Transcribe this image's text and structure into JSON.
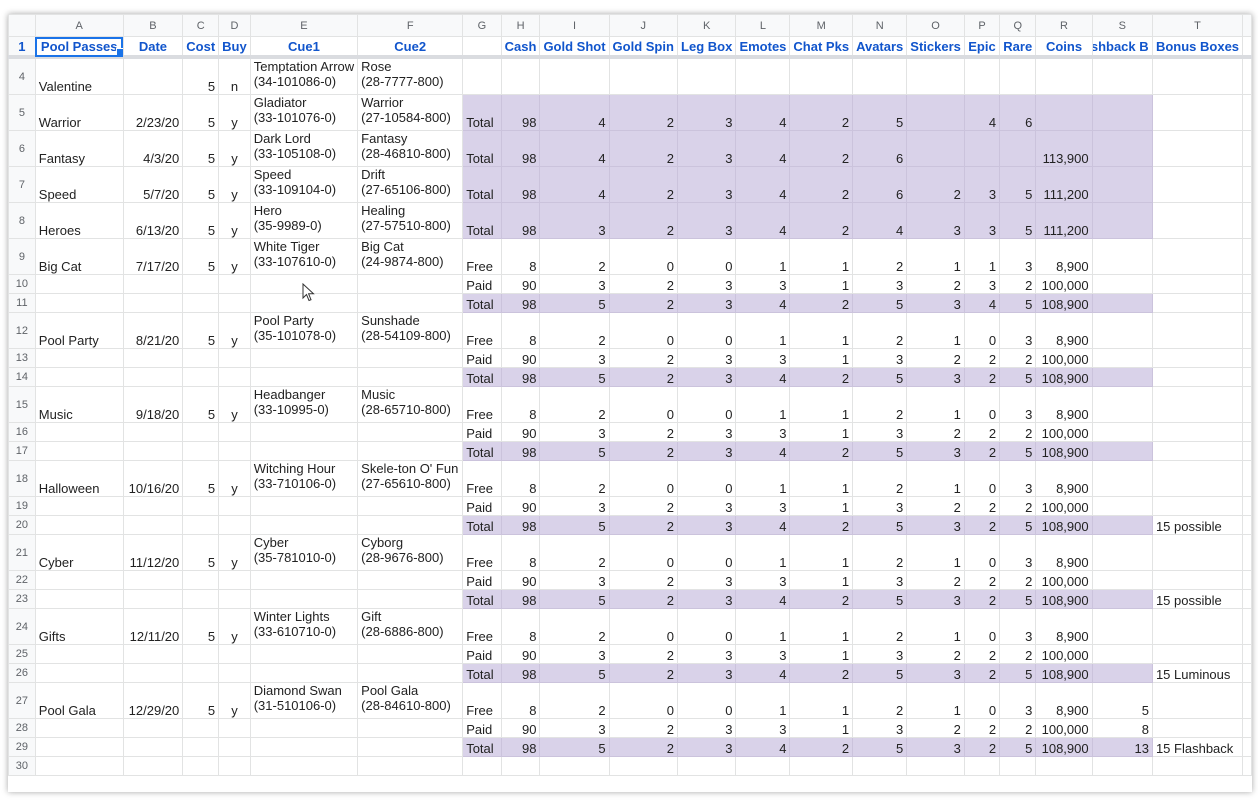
{
  "columns": [
    "A",
    "B",
    "C",
    "D",
    "E",
    "F",
    "G",
    "H",
    "I",
    "J",
    "K",
    "L",
    "M",
    "N",
    "O",
    "P",
    "Q",
    "R",
    "S",
    "T"
  ],
  "header_row": {
    "row_number": "1",
    "cells": [
      "Pool Passes",
      "Date",
      "Cost",
      "Buy",
      "Cue1",
      "Cue2",
      "",
      "Cash",
      "Gold Shot",
      "Gold Spin",
      "Leg Box",
      "Emotes",
      "Chat Pks",
      "Avatars",
      "Stickers",
      "Epic",
      "Rare",
      "Coins",
      "ashback B",
      "Bonus Boxes"
    ]
  },
  "selected_cell": "A1",
  "rows": [
    {
      "n": "4",
      "h": "tall",
      "tint": false,
      "cells": [
        "Valentine",
        "",
        "5",
        "n",
        [
          "Temptation Arrow",
          "(34-101086-0)"
        ],
        [
          "Rose",
          "(28-7777-800)"
        ],
        "",
        "",
        "",
        "",
        "",
        "",
        "",
        "",
        "",
        "",
        "",
        "",
        "",
        ""
      ]
    },
    {
      "n": "5",
      "h": "tall",
      "tint": true,
      "cells": [
        "Warrior",
        "2/23/20",
        "5",
        "y",
        [
          "Gladiator",
          "(33-101076-0)"
        ],
        [
          "Warrior",
          "(27-10584-800)"
        ],
        "Total",
        "98",
        "4",
        "2",
        "3",
        "4",
        "2",
        "5",
        "",
        "4",
        "6",
        "",
        "",
        ""
      ]
    },
    {
      "n": "6",
      "h": "tall",
      "tint": true,
      "cells": [
        "Fantasy",
        "4/3/20",
        "5",
        "y",
        [
          "Dark Lord",
          "(33-105108-0)"
        ],
        [
          "Fantasy",
          "(28-46810-800)"
        ],
        "Total",
        "98",
        "4",
        "2",
        "3",
        "4",
        "2",
        "6",
        "",
        "",
        "",
        "113,900",
        "",
        ""
      ]
    },
    {
      "n": "7",
      "h": "tall",
      "tint": true,
      "cells": [
        "Speed",
        "5/7/20",
        "5",
        "y",
        [
          "Speed",
          "(33-109104-0)"
        ],
        [
          "Drift",
          "(27-65106-800)"
        ],
        "Total",
        "98",
        "4",
        "2",
        "3",
        "4",
        "2",
        "6",
        "2",
        "3",
        "5",
        "111,200",
        "",
        ""
      ]
    },
    {
      "n": "8",
      "h": "tall",
      "tint": true,
      "cells": [
        "Heroes",
        "6/13/20",
        "5",
        "y",
        [
          "Hero",
          "(35-9989-0)"
        ],
        [
          "Healing",
          "(27-57510-800)"
        ],
        "Total",
        "98",
        "3",
        "2",
        "3",
        "4",
        "2",
        "4",
        "3",
        "3",
        "5",
        "111,200",
        "",
        ""
      ]
    },
    {
      "n": "9",
      "h": "tall",
      "tint": false,
      "cells": [
        "Big Cat",
        "7/17/20",
        "5",
        "y",
        [
          "White Tiger",
          "(33-107610-0)"
        ],
        [
          "Big Cat",
          "(24-9874-800)"
        ],
        "Free",
        "8",
        "2",
        "0",
        "0",
        "1",
        "1",
        "2",
        "1",
        "1",
        "3",
        "8,900",
        "",
        ""
      ]
    },
    {
      "n": "10",
      "h": "short",
      "tint": false,
      "cells": [
        "",
        "",
        "",
        "",
        "",
        "",
        "Paid",
        "90",
        "3",
        "2",
        "3",
        "3",
        "1",
        "3",
        "2",
        "3",
        "2",
        "100,000",
        "",
        ""
      ]
    },
    {
      "n": "11",
      "h": "short",
      "tint": true,
      "cells": [
        "",
        "",
        "",
        "",
        "",
        "",
        "Total",
        "98",
        "5",
        "2",
        "3",
        "4",
        "2",
        "5",
        "3",
        "4",
        "5",
        "108,900",
        "",
        ""
      ]
    },
    {
      "n": "12",
      "h": "tall",
      "tint": false,
      "cells": [
        "Pool Party",
        "8/21/20",
        "5",
        "y",
        [
          "Pool Party",
          "(35-101078-0)"
        ],
        [
          "Sunshade",
          "(28-54109-800)"
        ],
        "Free",
        "8",
        "2",
        "0",
        "0",
        "1",
        "1",
        "2",
        "1",
        "0",
        "3",
        "8,900",
        "",
        ""
      ]
    },
    {
      "n": "13",
      "h": "short",
      "tint": false,
      "cells": [
        "",
        "",
        "",
        "",
        "",
        "",
        "Paid",
        "90",
        "3",
        "2",
        "3",
        "3",
        "1",
        "3",
        "2",
        "2",
        "2",
        "100,000",
        "",
        ""
      ]
    },
    {
      "n": "14",
      "h": "short",
      "tint": true,
      "cells": [
        "",
        "",
        "",
        "",
        "",
        "",
        "Total",
        "98",
        "5",
        "2",
        "3",
        "4",
        "2",
        "5",
        "3",
        "2",
        "5",
        "108,900",
        "",
        ""
      ]
    },
    {
      "n": "15",
      "h": "tall",
      "tint": false,
      "cells": [
        "Music",
        "9/18/20",
        "5",
        "y",
        [
          "Headbanger",
          "(33-10995-0)"
        ],
        [
          "Music",
          "(28-65710-800)"
        ],
        "Free",
        "8",
        "2",
        "0",
        "0",
        "1",
        "1",
        "2",
        "1",
        "0",
        "3",
        "8,900",
        "",
        ""
      ]
    },
    {
      "n": "16",
      "h": "short",
      "tint": false,
      "cells": [
        "",
        "",
        "",
        "",
        "",
        "",
        "Paid",
        "90",
        "3",
        "2",
        "3",
        "3",
        "1",
        "3",
        "2",
        "2",
        "2",
        "100,000",
        "",
        ""
      ]
    },
    {
      "n": "17",
      "h": "short",
      "tint": true,
      "cells": [
        "",
        "",
        "",
        "",
        "",
        "",
        "Total",
        "98",
        "5",
        "2",
        "3",
        "4",
        "2",
        "5",
        "3",
        "2",
        "5",
        "108,900",
        "",
        ""
      ]
    },
    {
      "n": "18",
      "h": "tall",
      "tint": false,
      "cells": [
        "Halloween",
        "10/16/20",
        "5",
        "y",
        [
          "Witching Hour",
          "(33-710106-0)"
        ],
        [
          "Skele-ton O' Fun",
          "(27-65610-800)"
        ],
        "Free",
        "8",
        "2",
        "0",
        "0",
        "1",
        "1",
        "2",
        "1",
        "0",
        "3",
        "8,900",
        "",
        ""
      ]
    },
    {
      "n": "19",
      "h": "short",
      "tint": false,
      "cells": [
        "",
        "",
        "",
        "",
        "",
        "",
        "Paid",
        "90",
        "3",
        "2",
        "3",
        "3",
        "1",
        "3",
        "2",
        "2",
        "2",
        "100,000",
        "",
        ""
      ]
    },
    {
      "n": "20",
      "h": "short",
      "tint": true,
      "cells": [
        "",
        "",
        "",
        "",
        "",
        "",
        "Total",
        "98",
        "5",
        "2",
        "3",
        "4",
        "2",
        "5",
        "3",
        "2",
        "5",
        "108,900",
        "",
        "15 possible"
      ]
    },
    {
      "n": "21",
      "h": "tall",
      "tint": false,
      "cells": [
        "Cyber",
        "11/12/20",
        "5",
        "y",
        [
          "Cyber",
          "(35-781010-0)"
        ],
        [
          "Cyborg",
          "(28-9676-800)"
        ],
        "Free",
        "8",
        "2",
        "0",
        "0",
        "1",
        "1",
        "2",
        "1",
        "0",
        "3",
        "8,900",
        "",
        ""
      ]
    },
    {
      "n": "22",
      "h": "short",
      "tint": false,
      "cells": [
        "",
        "",
        "",
        "",
        "",
        "",
        "Paid",
        "90",
        "3",
        "2",
        "3",
        "3",
        "1",
        "3",
        "2",
        "2",
        "2",
        "100,000",
        "",
        ""
      ]
    },
    {
      "n": "23",
      "h": "short",
      "tint": true,
      "cells": [
        "",
        "",
        "",
        "",
        "",
        "",
        "Total",
        "98",
        "5",
        "2",
        "3",
        "4",
        "2",
        "5",
        "3",
        "2",
        "5",
        "108,900",
        "",
        "15 possible"
      ]
    },
    {
      "n": "24",
      "h": "tall",
      "tint": false,
      "cells": [
        "Gifts",
        "12/11/20",
        "5",
        "y",
        [
          "Winter Lights",
          "(33-610710-0)"
        ],
        [
          "Gift",
          "(28-6886-800)"
        ],
        "Free",
        "8",
        "2",
        "0",
        "0",
        "1",
        "1",
        "2",
        "1",
        "0",
        "3",
        "8,900",
        "",
        ""
      ]
    },
    {
      "n": "25",
      "h": "short",
      "tint": false,
      "cells": [
        "",
        "",
        "",
        "",
        "",
        "",
        "Paid",
        "90",
        "3",
        "2",
        "3",
        "3",
        "1",
        "3",
        "2",
        "2",
        "2",
        "100,000",
        "",
        ""
      ]
    },
    {
      "n": "26",
      "h": "short",
      "tint": true,
      "cells": [
        "",
        "",
        "",
        "",
        "",
        "",
        "Total",
        "98",
        "5",
        "2",
        "3",
        "4",
        "2",
        "5",
        "3",
        "2",
        "5",
        "108,900",
        "",
        "15 Luminous"
      ]
    },
    {
      "n": "27",
      "h": "tall",
      "tint": false,
      "cells": [
        "Pool Gala",
        "12/29/20",
        "5",
        "y",
        [
          "Diamond Swan",
          "(31-510106-0)"
        ],
        [
          "Pool Gala",
          "(28-84610-800)"
        ],
        "Free",
        "8",
        "2",
        "0",
        "0",
        "1",
        "1",
        "2",
        "1",
        "0",
        "3",
        "8,900",
        "5",
        ""
      ]
    },
    {
      "n": "28",
      "h": "short",
      "tint": false,
      "cells": [
        "",
        "",
        "",
        "",
        "",
        "",
        "Paid",
        "90",
        "3",
        "2",
        "3",
        "3",
        "1",
        "3",
        "2",
        "2",
        "2",
        "100,000",
        "8",
        ""
      ]
    },
    {
      "n": "29",
      "h": "short",
      "tint": true,
      "cells": [
        "",
        "",
        "",
        "",
        "",
        "",
        "Total",
        "98",
        "5",
        "2",
        "3",
        "4",
        "2",
        "5",
        "3",
        "2",
        "5",
        "108,900",
        "13",
        "15 Flashback"
      ]
    },
    {
      "n": "30",
      "h": "short",
      "tint": false,
      "cells": [
        "",
        "",
        "",
        "",
        "",
        "",
        "",
        "",
        "",
        "",
        "",
        "",
        "",
        "",
        "",
        "",
        "",
        "",
        "",
        ""
      ]
    }
  ],
  "colors": {
    "total_fill": "#d9d2e9",
    "header_text": "#1155cc",
    "selection": "#1a73e8"
  }
}
